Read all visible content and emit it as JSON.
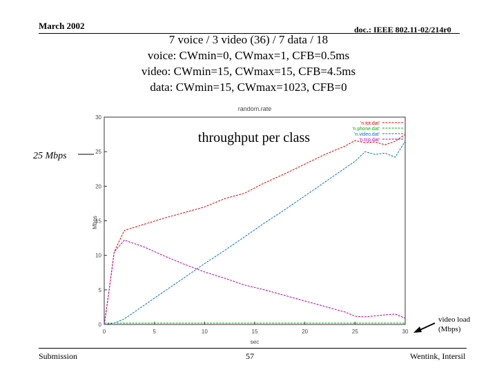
{
  "header": {
    "date": "March 2002",
    "doc_id": "doc.: IEEE 802.11-02/214r0"
  },
  "slide_title": {
    "line1": "7 voice / 3 video (36) / 7 data / 18",
    "line2": "voice: CWmin=0, CWmax=1, CFB=0.5ms",
    "line3": "video: CWmin=15, CWmax=15, CFB=4.5ms",
    "line4": "data: CWmin=15, CWmax=1023, CFB=0"
  },
  "annotations": {
    "callout_25": "25 Mbps",
    "throughput_label": "throughput per class",
    "video_load_line1": "video load",
    "video_load_line2": "(Mbps)"
  },
  "footer": {
    "left": "Submission",
    "page": "57",
    "right": "Wentink, Intersil"
  },
  "chart_data": {
    "type": "line",
    "title": "random.rate",
    "xlabel": "sec",
    "ylabel": "Mbps",
    "xlim": [
      0,
      30
    ],
    "ylim": [
      0,
      30
    ],
    "xticks": [
      0,
      5,
      10,
      15,
      20,
      25,
      30
    ],
    "yticks": [
      0,
      5,
      10,
      15,
      20,
      25,
      30
    ],
    "grid": false,
    "legend_position": "top-right",
    "series": [
      {
        "name": "'n.tot.dat'",
        "color": "#e00000",
        "x": [
          0,
          0.4,
          1,
          2,
          4,
          6,
          8,
          10,
          12,
          14,
          16,
          18,
          20,
          22,
          24,
          25,
          26,
          27,
          28,
          29,
          30
        ],
        "y": [
          0,
          4,
          10.5,
          13.6,
          14.5,
          15.4,
          16.2,
          17,
          18.2,
          19,
          20.5,
          21.8,
          23.2,
          24.6,
          25.8,
          26.6,
          26.3,
          26.4,
          26,
          26.5,
          27.5
        ]
      },
      {
        "name": "'n.phone.dat'",
        "color": "#00b000",
        "x": [
          0,
          30
        ],
        "y": [
          0.2,
          0.2
        ]
      },
      {
        "name": "'n.video.dat'",
        "color": "#0070d0",
        "x": [
          0,
          1,
          2,
          4,
          6,
          8,
          10,
          12,
          14,
          16,
          18,
          20,
          22,
          24,
          25,
          26,
          27,
          28,
          29,
          30
        ],
        "y": [
          0,
          0.2,
          0.8,
          2.8,
          4.8,
          6.8,
          8.8,
          10.7,
          12.7,
          14.7,
          16.6,
          18.6,
          20.6,
          22.6,
          23.6,
          25,
          24.6,
          24.8,
          24.2,
          26.5
        ]
      },
      {
        "name": "'n.tcp.dat'",
        "color": "#b000b0",
        "x": [
          0,
          0.4,
          1,
          2,
          4,
          6,
          8,
          10,
          12,
          14,
          16,
          18,
          20,
          22,
          24,
          25,
          26,
          28,
          29,
          30
        ],
        "y": [
          0,
          4,
          10.5,
          12.2,
          11.2,
          9.9,
          8.7,
          7.6,
          6.7,
          5.7,
          5,
          4.2,
          3.4,
          2.6,
          1.8,
          1.2,
          1.1,
          1.4,
          1.5,
          0.9
        ]
      }
    ]
  }
}
